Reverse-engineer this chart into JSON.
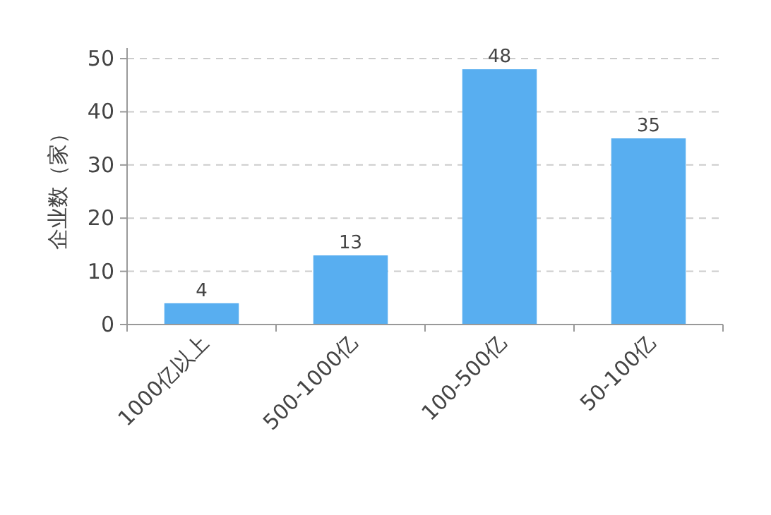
{
  "chart_data": {
    "type": "bar",
    "ylabel": "企业数（家）",
    "categories": [
      "1000亿以上",
      "500-1000亿",
      "100-500亿",
      "50-100亿"
    ],
    "values": [
      4,
      13,
      48,
      35
    ],
    "color": "#58aef0",
    "ylim": [
      0,
      52
    ],
    "yticks": [
      0,
      10,
      20,
      30,
      40,
      50
    ],
    "grid": "y",
    "data_labels": true
  }
}
